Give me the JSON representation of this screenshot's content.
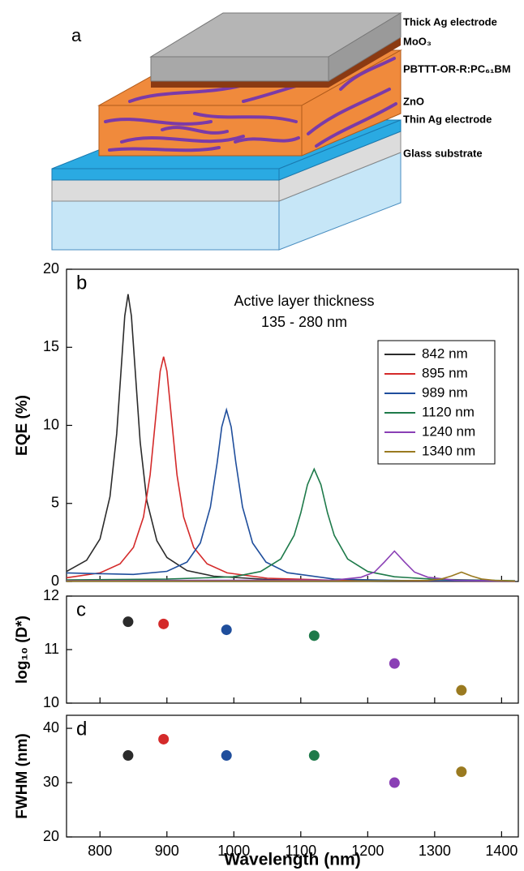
{
  "diagram": {
    "panel_label": "a",
    "layers": [
      "Thick Ag electrode",
      "MoO₃",
      "PBTTT-OR-R:PC₆₁BM",
      "ZnO",
      "Thin Ag electrode",
      "Glass substrate"
    ]
  },
  "chart_data": [
    {
      "type": "line",
      "panel_label": "b",
      "annotation": [
        "Active layer thickness",
        "135 - 280 nm"
      ],
      "ylabel": "EQE (%)",
      "xlim": [
        750,
        1425
      ],
      "ylim": [
        0,
        20
      ],
      "yticks": [
        0,
        5,
        10,
        15,
        20
      ],
      "legend": "right",
      "series": [
        {
          "name": "842 nm",
          "color": "#2b2b2b",
          "x": [
            750,
            780,
            800,
            815,
            825,
            832,
            837,
            842,
            847,
            852,
            860,
            870,
            885,
            900,
            930,
            970,
            1050,
            1200,
            1420
          ],
          "values": [
            0.64,
            1.36,
            2.72,
            5.44,
            9.47,
            13.87,
            17.01,
            18.4,
            17.01,
            13.87,
            8.94,
            5.17,
            2.61,
            1.54,
            0.7,
            0.34,
            0.13,
            0.03,
            0.01
          ]
        },
        {
          "name": "895 nm",
          "color": "#d42a2a",
          "x": [
            750,
            800,
            830,
            850,
            865,
            875,
            885,
            890,
            895,
            900,
            905,
            915,
            925,
            940,
            960,
            990,
            1050,
            1150,
            1420
          ],
          "values": [
            0.24,
            0.55,
            1.13,
            2.18,
            4.13,
            6.83,
            11.28,
            13.47,
            14.4,
            13.47,
            11.28,
            6.83,
            4.13,
            2.18,
            1.13,
            0.55,
            0.21,
            0.08,
            0.01
          ]
        },
        {
          "name": "989 nm",
          "color": "#1f4e9c",
          "x": [
            750,
            800,
            850,
            900,
            930,
            950,
            965,
            975,
            982,
            989,
            996,
            1003,
            1013,
            1028,
            1048,
            1080,
            1150,
            1250,
            1420
          ],
          "values": [
            0.55,
            0.5,
            0.45,
            0.65,
            1.24,
            2.47,
            4.77,
            7.6,
            9.9,
            11.0,
            9.9,
            7.6,
            4.77,
            2.47,
            1.24,
            0.56,
            0.15,
            0.06,
            0.02
          ]
        },
        {
          "name": "1120 nm",
          "color": "#1e7a4a",
          "x": [
            750,
            900,
            1000,
            1040,
            1070,
            1090,
            1100,
            1110,
            1120,
            1130,
            1140,
            1150,
            1170,
            1200,
            1240,
            1300,
            1420
          ],
          "values": [
            0.1,
            0.15,
            0.3,
            0.64,
            1.44,
            2.95,
            4.39,
            6.21,
            7.2,
            6.21,
            4.39,
            2.95,
            1.44,
            0.64,
            0.3,
            0.14,
            0.05
          ]
        },
        {
          "name": "1240 nm",
          "color": "#8a3fb5",
          "x": [
            750,
            1000,
            1150,
            1190,
            1210,
            1225,
            1240,
            1255,
            1270,
            1290,
            1330,
            1420
          ],
          "values": [
            0.05,
            0.08,
            0.09,
            0.27,
            0.6,
            1.25,
            1.95,
            1.25,
            0.6,
            0.27,
            0.09,
            0.03
          ]
        },
        {
          "name": "1340 nm",
          "color": "#9a7a20",
          "x": [
            750,
            1200,
            1290,
            1310,
            1325,
            1340,
            1355,
            1370,
            1390,
            1420
          ],
          "values": [
            0.02,
            0.03,
            0.07,
            0.16,
            0.35,
            0.6,
            0.35,
            0.16,
            0.07,
            0.02
          ]
        }
      ]
    },
    {
      "type": "scatter",
      "panel_label": "c",
      "ylabel": "log₁₀ (D*)",
      "xlim": [
        750,
        1425
      ],
      "ylim": [
        10,
        12
      ],
      "yticks": [
        10,
        11,
        12
      ],
      "x": [
        842,
        895,
        989,
        1120,
        1240,
        1340
      ],
      "values": [
        11.52,
        11.48,
        11.37,
        11.26,
        10.74,
        10.24
      ],
      "colors": [
        "#2b2b2b",
        "#d42a2a",
        "#1f4e9c",
        "#1e7a4a",
        "#8a3fb5",
        "#9a7a20"
      ]
    },
    {
      "type": "scatter",
      "panel_label": "d",
      "ylabel": "FWHM (nm)",
      "xlabel": "Wavelength (nm)",
      "xlim": [
        750,
        1425
      ],
      "ylim": [
        20,
        42.4
      ],
      "yticks": [
        20,
        30,
        40
      ],
      "xticks": [
        800,
        900,
        1000,
        1100,
        1200,
        1300,
        1400
      ],
      "x": [
        842,
        895,
        989,
        1120,
        1240,
        1340
      ],
      "values": [
        35,
        38,
        35,
        35,
        30,
        32
      ],
      "colors": [
        "#2b2b2b",
        "#d42a2a",
        "#1f4e9c",
        "#1e7a4a",
        "#8a3fb5",
        "#9a7a20"
      ]
    }
  ]
}
